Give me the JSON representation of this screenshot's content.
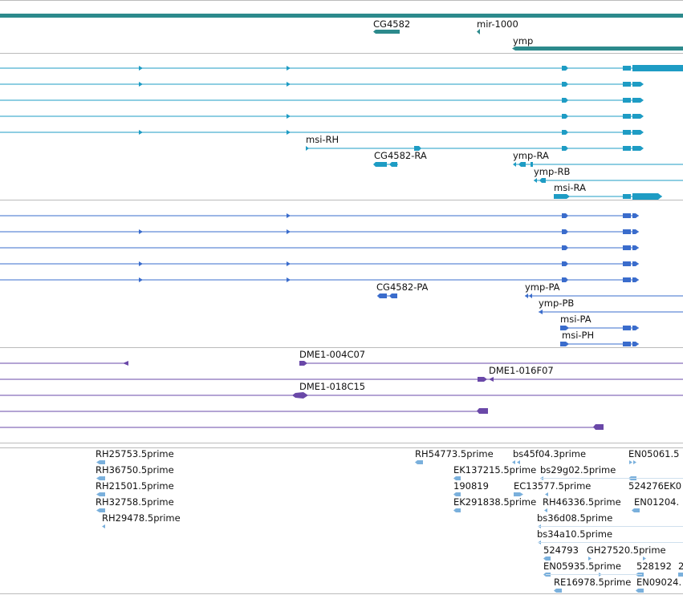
{
  "colors": {
    "gene": "#2c8a8c",
    "transcript": "#1e9cc4",
    "protein": "#3a6ccc",
    "clone": "#6a48a8",
    "est": "#7ab0dc",
    "separator": "#bbbbbb",
    "label": "#111111"
  },
  "tracks": {
    "genes": {
      "labels": [
        {
          "name": "gene-label-cg4582",
          "text": "CG4582"
        },
        {
          "name": "gene-label-mir-1000",
          "text": "mir-1000"
        },
        {
          "name": "gene-label-ymp",
          "text": "ymp"
        }
      ]
    },
    "transcripts": {
      "labels": [
        {
          "name": "transcript-label-msi-rh",
          "text": "msi-RH"
        },
        {
          "name": "transcript-label-cg4582-ra",
          "text": "CG4582-RA"
        },
        {
          "name": "transcript-label-ymp-ra",
          "text": "ymp-RA"
        },
        {
          "name": "transcript-label-ymp-rb",
          "text": "ymp-RB"
        },
        {
          "name": "transcript-label-msi-ra",
          "text": "msi-RA"
        }
      ]
    },
    "proteins": {
      "labels": [
        {
          "name": "protein-label-cg4582-pa",
          "text": "CG4582-PA"
        },
        {
          "name": "protein-label-ymp-pa",
          "text": "ymp-PA"
        },
        {
          "name": "protein-label-ymp-pb",
          "text": "ymp-PB"
        },
        {
          "name": "protein-label-msi-pa",
          "text": "msi-PA"
        },
        {
          "name": "protein-label-msi-ph",
          "text": "msi-PH"
        }
      ]
    },
    "clones": {
      "labels": [
        {
          "name": "clone-label-dme1-004c07",
          "text": "DME1-004C07"
        },
        {
          "name": "clone-label-dme1-016f07",
          "text": "DME1-016F07"
        },
        {
          "name": "clone-label-dme1-018c15",
          "text": "DME1-018C15"
        }
      ]
    },
    "ests": {
      "labels": [
        {
          "name": "est-label-rh25753",
          "text": "RH25753.5prime"
        },
        {
          "name": "est-label-rh36750",
          "text": "RH36750.5prime"
        },
        {
          "name": "est-label-rh21501",
          "text": "RH21501.5prime"
        },
        {
          "name": "est-label-rh32758",
          "text": "RH32758.5prime"
        },
        {
          "name": "est-label-rh29478",
          "text": "RH29478.5prime"
        },
        {
          "name": "est-label-rh54773",
          "text": "RH54773.5prime"
        },
        {
          "name": "est-label-ek137215",
          "text": "EK137215.5prime"
        },
        {
          "name": "est-label-190819",
          "text": "190819"
        },
        {
          "name": "est-label-ek291838",
          "text": "EK291838.5prime"
        },
        {
          "name": "est-label-bs45f04",
          "text": "bs45f04.3prime"
        },
        {
          "name": "est-label-bs29g02",
          "text": "bs29g02.5prime"
        },
        {
          "name": "est-label-ec13577",
          "text": "EC13577.5prime"
        },
        {
          "name": "est-label-rh46336",
          "text": "RH46336.5prime"
        },
        {
          "name": "est-label-bs36d08",
          "text": "bs36d08.5prime"
        },
        {
          "name": "est-label-bs34a10",
          "text": "bs34a10.5prime"
        },
        {
          "name": "est-label-524793",
          "text": "524793"
        },
        {
          "name": "est-label-gh27520",
          "text": "GH27520.5prime"
        },
        {
          "name": "est-label-en05935",
          "text": "EN05935.5prime"
        },
        {
          "name": "est-label-re16978",
          "text": "RE16978.5prime"
        },
        {
          "name": "est-label-528192",
          "text": "528192"
        },
        {
          "name": "est-label-2",
          "text": "2"
        },
        {
          "name": "est-label-en09024",
          "text": "EN09024."
        },
        {
          "name": "est-label-en05061",
          "text": "EN05061.5"
        },
        {
          "name": "est-label-524276",
          "text": "524276"
        },
        {
          "name": "est-label-ek0",
          "text": "EK0"
        },
        {
          "name": "est-label-en01204",
          "text": "EN01204."
        }
      ]
    }
  }
}
